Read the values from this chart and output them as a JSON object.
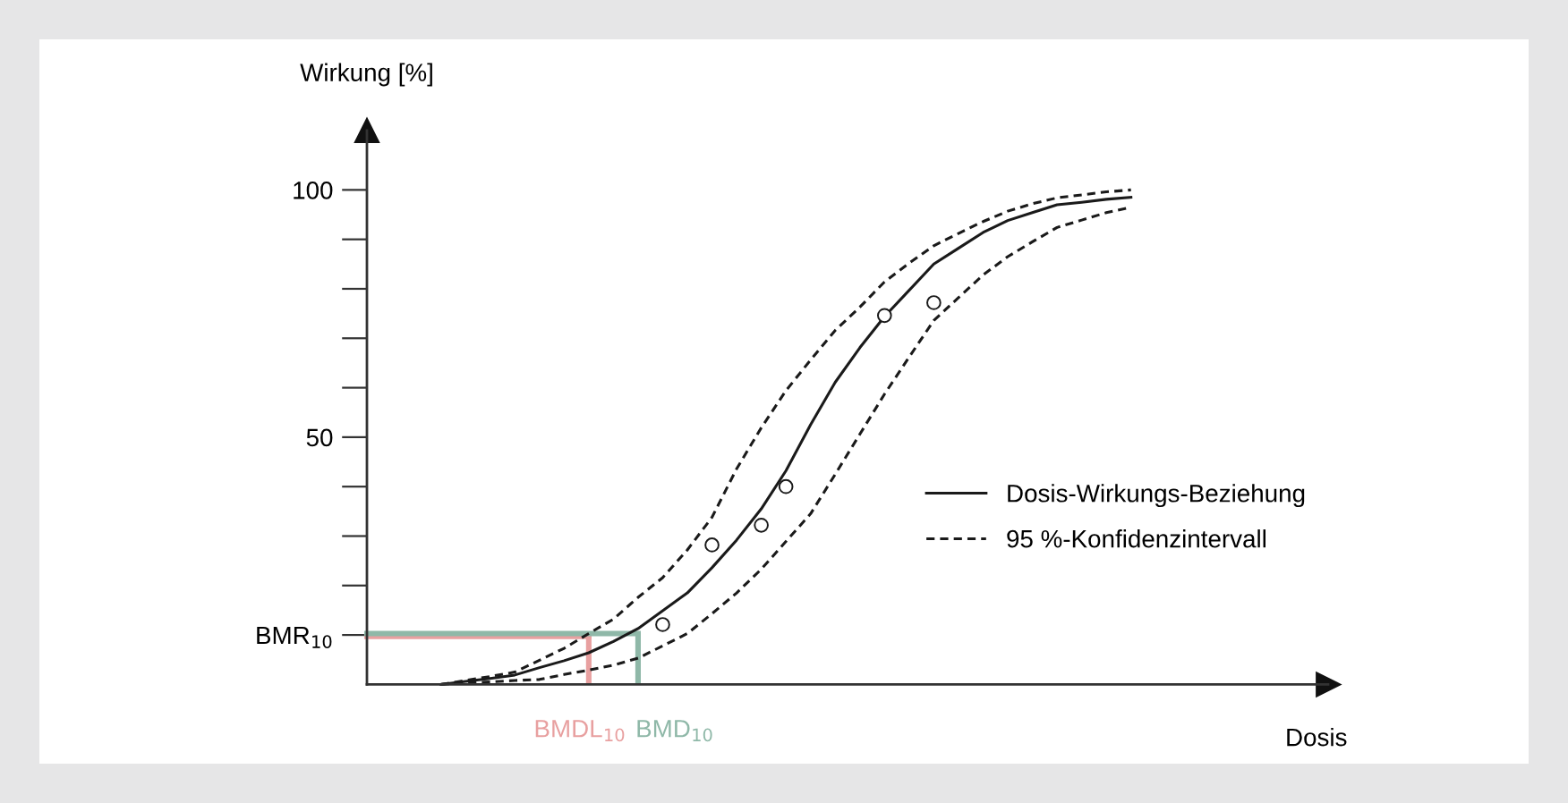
{
  "chart_data": {
    "type": "line",
    "xlabel": "Dosis",
    "ylabel": "Wirkung [%]",
    "categories": [
      null,
      null,
      null,
      null,
      null,
      null,
      null,
      null,
      null,
      null,
      null,
      null,
      null,
      null,
      null,
      null,
      null,
      null,
      null,
      null,
      null,
      null,
      null,
      null,
      null,
      null,
      null,
      null,
      null,
      null,
      null,
      null,
      null,
      null,
      null,
      null,
      null,
      null,
      null,
      null
    ],
    "ylim": [
      0,
      112
    ],
    "yticks": [
      {
        "value": 10,
        "label": "BMR$_{10}$"
      },
      {
        "value": 20,
        "label": null
      },
      {
        "value": 30,
        "label": null
      },
      {
        "value": 40,
        "label": null
      },
      50,
      {
        "value": 60,
        "label": null
      },
      {
        "value": 70,
        "label": null
      },
      {
        "value": 80,
        "label": null
      },
      {
        "value": 90,
        "label": null
      },
      100
    ],
    "annotations": [
      "BMDL$_{10}$",
      "BMD$_{10}$"
    ],
    "legend": "right",
    "marker": "none",
    "series": [
      {
        "color": "#e8a0a0",
        "line_style": "solid",
        "values": [
          9.7,
          9.7,
          9.7,
          9.7,
          9.7,
          9.7,
          9.7,
          9.7,
          9.7,
          9.7,
          null,
          null,
          null,
          null,
          null,
          null,
          null,
          null,
          null,
          null,
          null,
          null,
          null,
          null,
          null,
          null,
          null,
          null,
          null,
          null,
          null,
          null,
          null,
          null,
          null,
          null,
          null,
          null,
          null,
          null
        ],
        "errors": [
          null,
          null,
          null,
          null,
          null,
          null,
          null,
          null,
          null,
          [
            0,
            9.7
          ],
          null,
          null,
          null,
          null,
          null,
          null,
          null,
          null,
          null,
          null,
          null,
          null,
          null,
          null,
          null,
          null,
          null,
          null,
          null,
          null,
          null,
          null,
          null,
          null,
          null,
          null,
          null,
          null,
          null,
          null
        ]
      },
      {
        "color": "#8fb8a8",
        "line_style": "solid",
        "values": [
          10.3,
          10.3,
          10.3,
          10.3,
          10.3,
          10.3,
          10.3,
          10.3,
          10.3,
          10.3,
          10.3,
          10.3,
          null,
          null,
          null,
          null,
          null,
          null,
          null,
          null,
          null,
          null,
          null,
          null,
          null,
          null,
          null,
          null,
          null,
          null,
          null,
          null,
          null,
          null,
          null,
          null,
          null,
          null,
          null,
          null
        ],
        "errors": [
          null,
          null,
          null,
          null,
          null,
          null,
          null,
          null,
          null,
          null,
          null,
          [
            0,
            10.3
          ],
          null,
          null,
          null,
          null,
          null,
          null,
          null,
          null,
          null,
          null,
          null,
          null,
          null,
          null,
          null,
          null,
          null,
          null,
          null,
          null,
          null,
          null,
          null,
          null,
          null,
          null,
          null,
          null
        ]
      },
      {
        "name": "Dosis-Wirkungs-Beziehung",
        "color": "#1a1a1a",
        "line_style": "solid",
        "values": [
          null,
          null,
          null,
          0,
          0.6,
          1.2,
          1.9,
          3.4,
          4.8,
          6.4,
          8.7,
          11.3,
          14.9,
          18.5,
          23.6,
          29.2,
          35.5,
          43.2,
          52.5,
          61.1,
          68.1,
          74.4,
          79.7,
          85,
          88.2,
          91.4,
          93.8,
          95.4,
          97,
          97.5,
          98.1,
          98.5,
          null,
          null,
          null,
          null,
          null,
          null,
          null,
          null
        ]
      },
      {
        "name": "95 %-Konfidenzintervall",
        "color": "#1a1a1a",
        "line_style": "dashed",
        "values": [
          null,
          null,
          null,
          0,
          0.8,
          1.6,
          2.5,
          4.9,
          7.3,
          10.3,
          13.2,
          17.6,
          21.6,
          27.2,
          33.8,
          43.6,
          51.9,
          59.4,
          65.6,
          71.6,
          76.3,
          81.4,
          85.2,
          88.7,
          91.2,
          93.6,
          95.7,
          97.2,
          98.4,
          99,
          99.6,
          100,
          null,
          null,
          null,
          null,
          null,
          null,
          null,
          null
        ]
      },
      {
        "color": "#1a1a1a",
        "line_style": "dashed",
        "values": [
          null,
          null,
          null,
          0,
          0.3,
          0.5,
          0.8,
          1,
          2,
          2.9,
          3.9,
          5.3,
          7.8,
          10.3,
          14.3,
          18.5,
          23.3,
          28.9,
          34.5,
          42.5,
          50.6,
          58.7,
          66.2,
          73.6,
          78.2,
          82.8,
          86.5,
          89.5,
          92.4,
          93.9,
          95.4,
          96.5,
          null,
          null,
          null,
          null,
          null,
          null,
          null,
          null
        ]
      },
      {
        "type": "scatter",
        "color": "#1a1a1a",
        "marker": "circle",
        "values": [
          null,
          null,
          null,
          null,
          null,
          null,
          null,
          null,
          null,
          null,
          null,
          null,
          12.1,
          null,
          28.2,
          null,
          32.2,
          40,
          null,
          null,
          null,
          74.6,
          null,
          77.2,
          null,
          null,
          null,
          null,
          null,
          null,
          null,
          null,
          null,
          null,
          null,
          null,
          null,
          null,
          null,
          null
        ]
      }
    ]
  }
}
